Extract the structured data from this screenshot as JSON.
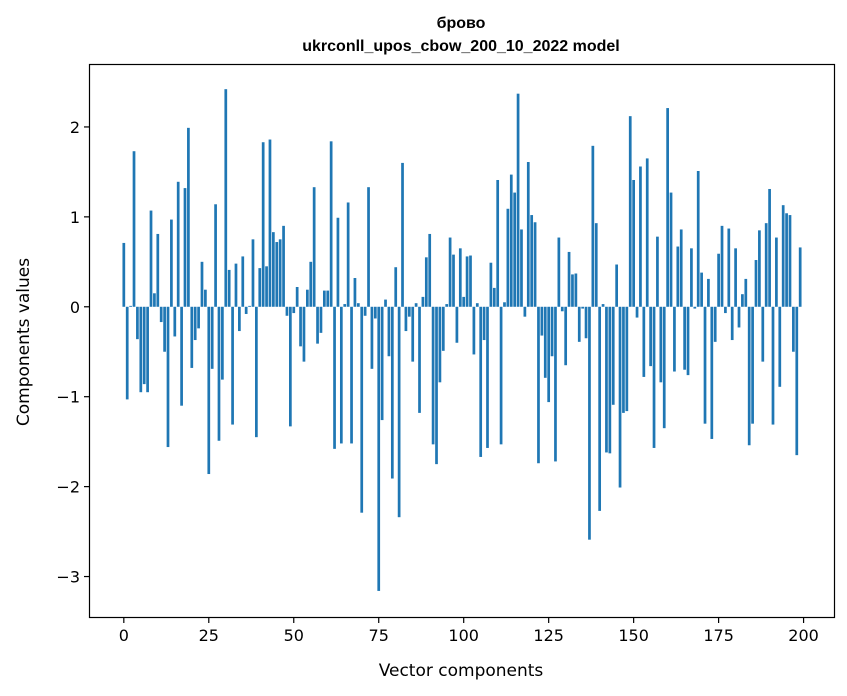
{
  "chart_data": {
    "type": "bar",
    "title": "брово",
    "subtitle": "ukrconll_upos_cbow_200_10_2022 model",
    "xlabel": "Vector components",
    "ylabel": "Components values",
    "xlim": [
      -9.95,
      208.95
    ],
    "ylim": [
      -3.45,
      2.7
    ],
    "xticks": [
      0,
      25,
      50,
      75,
      100,
      125,
      150,
      175,
      200
    ],
    "yticks": [
      -3,
      -2,
      -1,
      0,
      1,
      2
    ],
    "ytick_labels": [
      "−3",
      "−2",
      "−1",
      "0",
      "1",
      "2"
    ],
    "bar_color": "#1f77b4",
    "grid": false,
    "x": [
      0,
      1,
      2,
      3,
      4,
      5,
      6,
      7,
      8,
      9,
      10,
      11,
      12,
      13,
      14,
      15,
      16,
      17,
      18,
      19,
      20,
      21,
      22,
      23,
      24,
      25,
      26,
      27,
      28,
      29,
      30,
      31,
      32,
      33,
      34,
      35,
      36,
      37,
      38,
      39,
      40,
      41,
      42,
      43,
      44,
      45,
      46,
      47,
      48,
      49,
      50,
      51,
      52,
      53,
      54,
      55,
      56,
      57,
      58,
      59,
      60,
      61,
      62,
      63,
      64,
      65,
      66,
      67,
      68,
      69,
      70,
      71,
      72,
      73,
      74,
      75,
      76,
      77,
      78,
      79,
      80,
      81,
      82,
      83,
      84,
      85,
      86,
      87,
      88,
      89,
      90,
      91,
      92,
      93,
      94,
      95,
      96,
      97,
      98,
      99,
      100,
      101,
      102,
      103,
      104,
      105,
      106,
      107,
      108,
      109,
      110,
      111,
      112,
      113,
      114,
      115,
      116,
      117,
      118,
      119,
      120,
      121,
      122,
      123,
      124,
      125,
      126,
      127,
      128,
      129,
      130,
      131,
      132,
      133,
      134,
      135,
      136,
      137,
      138,
      139,
      140,
      141,
      142,
      143,
      144,
      145,
      146,
      147,
      148,
      149,
      150,
      151,
      152,
      153,
      154,
      155,
      156,
      157,
      158,
      159,
      160,
      161,
      162,
      163,
      164,
      165,
      166,
      167,
      168,
      169,
      170,
      171,
      172,
      173,
      174,
      175,
      176,
      177,
      178,
      179,
      180,
      181,
      182,
      183,
      184,
      185,
      186,
      187,
      188,
      189,
      190,
      191,
      192,
      193,
      194,
      195,
      196,
      197,
      198,
      199
    ],
    "values": [
      0.71,
      -1.03,
      0.01,
      1.73,
      -0.36,
      -0.95,
      -0.86,
      -0.95,
      1.07,
      0.15,
      0.81,
      -0.17,
      -0.5,
      -1.56,
      0.97,
      -0.33,
      1.39,
      -1.1,
      1.32,
      1.99,
      -0.68,
      -0.37,
      -0.24,
      0.5,
      0.19,
      -1.86,
      -0.69,
      1.14,
      -1.49,
      -0.81,
      2.42,
      0.41,
      -1.31,
      0.48,
      -0.27,
      0.56,
      -0.08,
      0.01,
      0.75,
      -1.45,
      0.43,
      1.83,
      0.45,
      1.86,
      0.83,
      0.72,
      0.75,
      0.9,
      -0.1,
      -1.33,
      -0.07,
      0.22,
      -0.44,
      -0.61,
      0.19,
      0.5,
      1.33,
      -0.41,
      -0.29,
      0.18,
      0.18,
      1.84,
      -1.58,
      0.99,
      -1.52,
      0.03,
      1.16,
      -1.52,
      0.32,
      0.04,
      -2.29,
      -0.1,
      1.33,
      -0.69,
      -0.13,
      -3.16,
      -1.26,
      0.08,
      -0.55,
      -1.91,
      0.44,
      -2.34,
      1.6,
      -0.27,
      -0.11,
      -0.61,
      0.04,
      -1.18,
      0.11,
      0.55,
      0.81,
      -1.53,
      -1.75,
      -0.84,
      -0.49,
      0.03,
      0.77,
      0.58,
      -0.4,
      0.65,
      0.11,
      0.56,
      0.57,
      -0.53,
      0.04,
      -1.67,
      -0.37,
      -1.57,
      0.49,
      0.21,
      1.41,
      -1.53,
      0.05,
      1.09,
      1.47,
      1.27,
      2.37,
      0.86,
      -0.11,
      1.61,
      1.02,
      0.94,
      -1.74,
      -0.32,
      -0.79,
      -1.06,
      -0.55,
      -1.72,
      0.77,
      -0.05,
      -0.65,
      0.61,
      0.36,
      0.37,
      -0.39,
      -0.02,
      -0.35,
      -2.59,
      1.79,
      0.93,
      -2.27,
      0.03,
      -1.62,
      -1.63,
      -1.09,
      0.47,
      -2.01,
      -1.18,
      -1.16,
      2.12,
      1.41,
      -0.12,
      1.56,
      -0.78,
      1.65,
      -0.66,
      -1.57,
      0.78,
      -0.84,
      -1.35,
      2.21,
      1.27,
      -0.72,
      0.67,
      0.86,
      -0.7,
      -0.76,
      0.65,
      -0.02,
      1.51,
      0.38,
      -1.3,
      0.31,
      -1.47,
      -0.39,
      0.59,
      0.9,
      -0.07,
      0.87,
      -0.37,
      0.65,
      -0.23,
      0.14,
      0.31,
      -1.54,
      -1.3,
      0.52,
      0.85,
      -0.61,
      0.93,
      1.31,
      -1.31,
      0.77,
      -0.89,
      1.13,
      1.04,
      1.02,
      -0.5,
      -1.65,
      0.66
    ]
  }
}
